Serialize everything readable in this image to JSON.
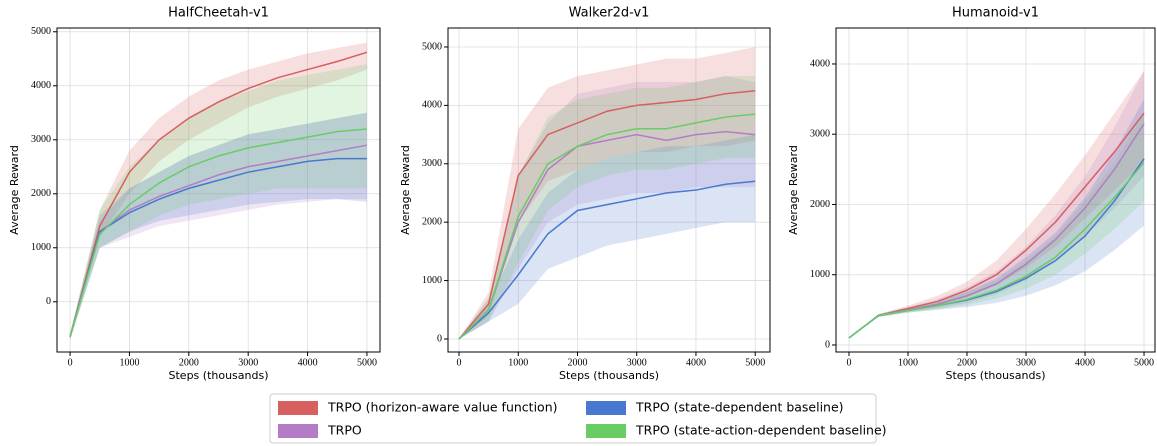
{
  "chart_data": [
    {
      "type": "line",
      "title": "HalfCheetah-v1",
      "x_label": "Steps (thousands)",
      "y_label": "Average Reward",
      "x": [
        0,
        500,
        1000,
        1500,
        2000,
        2500,
        3000,
        3500,
        4000,
        4500,
        5000
      ],
      "xlim": [
        -220,
        5220
      ],
      "ylim": [
        -930,
        5070
      ],
      "xticks": [
        0,
        1000,
        2000,
        3000,
        4000,
        5000
      ],
      "yticks": [
        0,
        1000,
        2000,
        3000,
        4000,
        5000
      ],
      "grid": true,
      "series": [
        {
          "name": "TRPO (horizon-aware value function)",
          "color": "#d65f5f",
          "values": [
            -650,
            1400,
            2400,
            3000,
            3400,
            3700,
            3950,
            4150,
            4300,
            4450,
            4620
          ],
          "lower": [
            -700,
            1200,
            2000,
            2600,
            3000,
            3300,
            3600,
            3800,
            3950,
            4100,
            4300
          ],
          "upper": [
            -600,
            1700,
            2800,
            3400,
            3800,
            4100,
            4300,
            4450,
            4600,
            4700,
            4800
          ]
        },
        {
          "name": "TRPO",
          "color": "#b47cc7",
          "values": [
            -650,
            1300,
            1700,
            1950,
            2150,
            2350,
            2500,
            2600,
            2700,
            2800,
            2900
          ],
          "lower": [
            -700,
            1000,
            1200,
            1400,
            1500,
            1600,
            1700,
            1800,
            1850,
            1900,
            1900
          ],
          "upper": [
            -600,
            1500,
            2100,
            2400,
            2700,
            2900,
            3100,
            3200,
            3300,
            3400,
            3500
          ]
        },
        {
          "name": "TRPO (state-dependent baseline)",
          "color": "#4878cf",
          "values": [
            -650,
            1300,
            1650,
            1900,
            2100,
            2250,
            2400,
            2500,
            2600,
            2650,
            2650
          ],
          "lower": [
            -700,
            1000,
            1300,
            1500,
            1600,
            1700,
            1800,
            1850,
            1900,
            1900,
            1850
          ],
          "upper": [
            -600,
            1600,
            2100,
            2400,
            2700,
            2900,
            3100,
            3200,
            3300,
            3400,
            3500
          ]
        },
        {
          "name": "TRPO (state-action-dependent baseline)",
          "color": "#6acc65",
          "values": [
            -650,
            1250,
            1800,
            2200,
            2500,
            2700,
            2850,
            2950,
            3050,
            3150,
            3200
          ],
          "lower": [
            -700,
            1000,
            1300,
            1600,
            1800,
            1900,
            2000,
            2100,
            2100,
            2100,
            2100
          ],
          "upper": [
            -600,
            1700,
            2500,
            3000,
            3400,
            3700,
            3900,
            4100,
            4200,
            4300,
            4400
          ]
        }
      ]
    },
    {
      "type": "line",
      "title": "Walker2d-v1",
      "x_label": "Steps (thousands)",
      "y_label": "Average Reward",
      "x": [
        0,
        500,
        1000,
        1500,
        2000,
        2500,
        3000,
        3500,
        4000,
        4500,
        5000
      ],
      "xlim": [
        -186,
        5250
      ],
      "ylim": [
        -223,
        5325
      ],
      "xticks": [
        0,
        1000,
        2000,
        3000,
        4000,
        5000
      ],
      "yticks": [
        0,
        1000,
        2000,
        3000,
        4000,
        5000
      ],
      "grid": true,
      "series": [
        {
          "name": "TRPO (horizon-aware value function)",
          "color": "#d65f5f",
          "values": [
            0,
            600,
            2800,
            3500,
            3700,
            3900,
            4000,
            4050,
            4100,
            4200,
            4250
          ],
          "lower": [
            0,
            400,
            2000,
            2700,
            2900,
            3100,
            3200,
            3200,
            3300,
            3300,
            3400
          ],
          "upper": [
            0,
            800,
            3600,
            4300,
            4500,
            4600,
            4700,
            4800,
            4800,
            4900,
            5000
          ]
        },
        {
          "name": "TRPO",
          "color": "#b47cc7",
          "values": [
            0,
            500,
            2000,
            2900,
            3300,
            3400,
            3500,
            3400,
            3500,
            3550,
            3500
          ],
          "lower": [
            0,
            300,
            1200,
            2000,
            2300,
            2400,
            2500,
            2500,
            2600,
            2600,
            2600
          ],
          "upper": [
            0,
            700,
            2800,
            3700,
            4200,
            4300,
            4400,
            4400,
            4400,
            4500,
            4400
          ]
        },
        {
          "name": "TRPO (state-dependent baseline)",
          "color": "#4878cf",
          "values": [
            0,
            450,
            1100,
            1800,
            2200,
            2300,
            2400,
            2500,
            2550,
            2650,
            2700
          ],
          "lower": [
            0,
            300,
            600,
            1200,
            1400,
            1600,
            1700,
            1800,
            1900,
            2000,
            2000
          ],
          "upper": [
            0,
            600,
            1700,
            2500,
            2900,
            3100,
            3200,
            3300,
            3300,
            3400,
            3500
          ]
        },
        {
          "name": "TRPO (state-action-dependent baseline)",
          "color": "#6acc65",
          "values": [
            0,
            500,
            2100,
            3000,
            3300,
            3500,
            3600,
            3600,
            3700,
            3800,
            3850
          ],
          "lower": [
            0,
            300,
            1300,
            2200,
            2600,
            2800,
            2900,
            2900,
            3000,
            3100,
            3100
          ],
          "upper": [
            0,
            700,
            2800,
            3800,
            4100,
            4200,
            4300,
            4300,
            4400,
            4500,
            4500
          ]
        }
      ]
    },
    {
      "type": "line",
      "title": "Humanoid-v1",
      "x_label": "Steps (thousands)",
      "y_label": "Average Reward",
      "x": [
        0,
        500,
        1000,
        1500,
        2000,
        2500,
        3000,
        3500,
        4000,
        4500,
        5000
      ],
      "xlim": [
        -220,
        5186
      ],
      "ylim": [
        -100,
        4512
      ],
      "xticks": [
        0,
        1000,
        2000,
        3000,
        4000,
        5000
      ],
      "yticks": [
        0,
        1000,
        2000,
        3000,
        4000
      ],
      "grid": true,
      "series": [
        {
          "name": "TRPO (horizon-aware value function)",
          "color": "#d65f5f",
          "values": [
            100,
            420,
            520,
            620,
            780,
            1000,
            1350,
            1750,
            2250,
            2750,
            3300
          ],
          "lower": [
            100,
            400,
            480,
            560,
            680,
            850,
            1100,
            1400,
            1800,
            2200,
            2600
          ],
          "upper": [
            100,
            440,
            560,
            700,
            900,
            1200,
            1650,
            2150,
            2700,
            3300,
            3900
          ]
        },
        {
          "name": "TRPO",
          "color": "#b47cc7",
          "values": [
            100,
            420,
            500,
            580,
            700,
            870,
            1150,
            1500,
            1950,
            2500,
            3150
          ],
          "lower": [
            100,
            400,
            470,
            520,
            600,
            720,
            920,
            1200,
            1550,
            1950,
            2400
          ],
          "upper": [
            100,
            440,
            540,
            650,
            820,
            1050,
            1400,
            1850,
            2400,
            3100,
            3900
          ]
        },
        {
          "name": "TRPO (state-dependent baseline)",
          "color": "#4878cf",
          "values": [
            100,
            420,
            490,
            560,
            640,
            760,
            950,
            1200,
            1550,
            2050,
            2650
          ],
          "lower": [
            100,
            400,
            460,
            500,
            540,
            600,
            700,
            850,
            1050,
            1350,
            1700
          ],
          "upper": [
            100,
            440,
            530,
            630,
            760,
            950,
            1250,
            1600,
            2100,
            2750,
            3500
          ]
        },
        {
          "name": "TRPO (state-action-dependent baseline)",
          "color": "#6acc65",
          "values": [
            100,
            420,
            490,
            560,
            650,
            780,
            980,
            1250,
            1650,
            2100,
            2600
          ],
          "lower": [
            100,
            400,
            460,
            510,
            570,
            660,
            800,
            1000,
            1300,
            1650,
            2050
          ],
          "upper": [
            100,
            440,
            530,
            620,
            750,
            920,
            1200,
            1550,
            2050,
            2600,
            3300
          ]
        }
      ]
    }
  ]
}
